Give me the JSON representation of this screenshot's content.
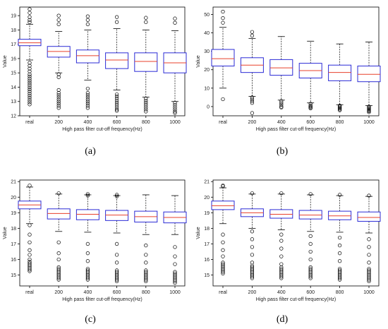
{
  "colors": {
    "box": "#2b2bd6",
    "median": "#e8412b",
    "whisker": "#000000",
    "flier": "#000000",
    "axis": "#000000"
  },
  "chart_data": [
    {
      "type": "box",
      "panel_label": "(a)",
      "categories": [
        "real",
        "200",
        "400",
        "600",
        "800",
        "1000"
      ],
      "xlabel": "High pass filter cut-off frequency(Hz)",
      "ylabel": "Value",
      "ylim": [
        12,
        19.6
      ],
      "yticks": [
        12,
        13,
        14,
        15,
        16,
        17,
        18,
        19
      ],
      "boxes": [
        {
          "whislo": 15.9,
          "q1": 16.9,
          "med": 17.1,
          "q3": 17.35,
          "whishi": 18.4,
          "fliers": [
            19.45,
            19.2,
            18.9,
            18.7,
            18.55,
            15.7,
            15.5,
            15.3,
            15.1,
            14.9,
            14.75,
            14.6,
            14.45,
            14.3,
            14.15,
            14.0,
            13.85,
            13.7,
            13.55,
            13.4,
            13.25,
            13.1,
            12.95,
            12.8
          ]
        },
        {
          "whislo": 15.0,
          "q1": 16.1,
          "med": 16.5,
          "q3": 16.85,
          "whishi": 17.9,
          "fliers": [
            19.0,
            18.7,
            18.4,
            14.9,
            14.7,
            13.8,
            13.6,
            13.45,
            13.3,
            13.15,
            13.0,
            12.85,
            12.7,
            12.55
          ]
        },
        {
          "whislo": 14.5,
          "q1": 15.7,
          "med": 16.2,
          "q3": 16.6,
          "whishi": 18.0,
          "fliers": [
            18.95,
            18.7,
            18.4,
            13.9,
            13.6,
            13.45,
            13.3,
            13.15,
            13.0,
            12.85,
            12.7,
            12.55
          ]
        },
        {
          "whislo": 13.8,
          "q1": 15.3,
          "med": 15.9,
          "q3": 16.4,
          "whishi": 18.1,
          "fliers": [
            18.9,
            18.55,
            13.5,
            13.35,
            13.2,
            13.05,
            12.9,
            12.75,
            12.6,
            12.45,
            12.35
          ]
        },
        {
          "whislo": 13.3,
          "q1": 15.1,
          "med": 15.8,
          "q3": 16.4,
          "whishi": 18.0,
          "fliers": [
            18.85,
            18.55,
            13.2,
            13.05,
            12.9,
            12.75,
            12.6,
            12.45,
            12.3
          ]
        },
        {
          "whislo": 13.0,
          "q1": 15.0,
          "med": 15.7,
          "q3": 16.4,
          "whishi": 17.95,
          "fliers": [
            18.8,
            18.5,
            12.9,
            12.75,
            12.6,
            12.45,
            12.3,
            12.2
          ]
        }
      ]
    },
    {
      "type": "box",
      "panel_label": "(b)",
      "categories": [
        "real",
        "200",
        "400",
        "600",
        "800",
        "1000"
      ],
      "xlabel": "High pass filter cut-off frequency(Hz)",
      "ylabel": "Value",
      "ylim": [
        -5,
        54
      ],
      "yticks": [
        0,
        10,
        20,
        30,
        40,
        50
      ],
      "boxes": [
        {
          "whislo": 10,
          "q1": 22,
          "med": 26,
          "q3": 31,
          "whishi": 43,
          "fliers": [
            51.5,
            48,
            45.5,
            4
          ]
        },
        {
          "whislo": 5.5,
          "q1": 18.5,
          "med": 22.5,
          "q3": 26.5,
          "whishi": 37,
          "fliers": [
            40.5,
            38.5,
            5,
            4,
            3,
            2,
            -3.5
          ]
        },
        {
          "whislo": 3.5,
          "q1": 17,
          "med": 21,
          "q3": 25.5,
          "whishi": 38,
          "fliers": [
            3,
            2,
            1,
            0,
            -0.5
          ]
        },
        {
          "whislo": 2,
          "q1": 15.5,
          "med": 19.5,
          "q3": 23.5,
          "whishi": 35.5,
          "fliers": [
            1.5,
            0.5,
            0,
            -0.5,
            -1
          ]
        },
        {
          "whislo": 1,
          "q1": 14,
          "med": 18.5,
          "q3": 22.5,
          "whishi": 34,
          "fliers": [
            0.5,
            0,
            -0.5,
            -1,
            -1.5,
            -2
          ]
        },
        {
          "whislo": 0.5,
          "q1": 13.5,
          "med": 17.5,
          "q3": 22,
          "whishi": 35,
          "fliers": [
            0,
            -0.5,
            -1,
            -1.5,
            -2,
            -2.5,
            -3
          ]
        }
      ]
    },
    {
      "type": "box",
      "panel_label": "(c)",
      "categories": [
        "real",
        "200",
        "400",
        "600",
        "800",
        "1000"
      ],
      "xlabel": "High pass filter cut-off frequency(Hz)",
      "ylabel": "Value",
      "ylim": [
        14.3,
        21.1
      ],
      "yticks": [
        15,
        16,
        17,
        18,
        19,
        20,
        21
      ],
      "boxes": [
        {
          "whislo": 18.3,
          "q1": 19.25,
          "med": 19.5,
          "q3": 19.75,
          "whishi": 20.65,
          "fliers": [
            20.75,
            18.2,
            17.6,
            17.1,
            16.6,
            16.3,
            16.0,
            15.85,
            15.75,
            15.65,
            15.55,
            15.45,
            15.35,
            15.25
          ]
        },
        {
          "whislo": 17.8,
          "q1": 18.6,
          "med": 18.95,
          "q3": 19.25,
          "whishi": 20.2,
          "fliers": [
            20.25,
            17.1,
            16.4,
            16.0,
            15.5,
            15.4,
            15.3,
            15.2,
            15.1,
            15.0,
            14.9,
            14.8,
            14.7
          ]
        },
        {
          "whislo": 17.75,
          "q1": 18.55,
          "med": 18.9,
          "q3": 19.2,
          "whishi": 20.15,
          "fliers": [
            20.2,
            20.1,
            17.0,
            16.4,
            15.9,
            15.4,
            15.3,
            15.2,
            15.1,
            15.0,
            14.9,
            14.8,
            14.7
          ]
        },
        {
          "whislo": 17.7,
          "q1": 18.5,
          "med": 18.85,
          "q3": 19.15,
          "whishi": 20.1,
          "fliers": [
            20.15,
            20.05,
            17.0,
            16.3,
            15.8,
            15.3,
            15.2,
            15.1,
            15.0,
            14.9,
            14.8,
            14.7,
            14.6
          ]
        },
        {
          "whislo": 17.6,
          "q1": 18.4,
          "med": 18.75,
          "q3": 19.1,
          "whishi": 20.15,
          "fliers": [
            16.9,
            16.3,
            15.8,
            15.3,
            15.2,
            15.1,
            15.0,
            14.9,
            14.8,
            14.7,
            14.6
          ]
        },
        {
          "whislo": 17.6,
          "q1": 18.35,
          "med": 18.7,
          "q3": 19.05,
          "whishi": 20.1,
          "fliers": [
            16.8,
            16.2,
            15.7,
            15.2,
            15.1,
            15.0,
            14.9,
            14.8,
            14.7,
            14.6,
            14.5
          ]
        }
      ]
    },
    {
      "type": "box",
      "panel_label": "(d)",
      "categories": [
        "real",
        "200",
        "400",
        "600",
        "800",
        "1000"
      ],
      "xlabel": "High pass filter cut-off frequency(Hz)",
      "ylabel": "Value",
      "ylim": [
        14.3,
        21.1
      ],
      "yticks": [
        15,
        16,
        17,
        18,
        19,
        20,
        21
      ],
      "boxes": [
        {
          "whislo": 18.3,
          "q1": 19.2,
          "med": 19.45,
          "q3": 19.75,
          "whishi": 20.6,
          "fliers": [
            20.75,
            20.7,
            17.6,
            17.1,
            16.6,
            16.2,
            15.8,
            15.7,
            15.6,
            15.5,
            15.4,
            15.3,
            15.2,
            15.1
          ]
        },
        {
          "whislo": 18.0,
          "q1": 18.75,
          "med": 19.0,
          "q3": 19.25,
          "whishi": 20.2,
          "fliers": [
            20.25,
            17.8,
            17.3,
            16.8,
            16.3,
            15.8,
            15.6,
            15.5,
            15.4,
            15.3,
            15.2,
            15.1,
            15.0,
            14.9,
            14.8
          ]
        },
        {
          "whislo": 17.9,
          "q1": 18.65,
          "med": 18.9,
          "q3": 19.2,
          "whishi": 20.2,
          "fliers": [
            20.25,
            17.6,
            17.2,
            16.7,
            16.2,
            15.7,
            15.5,
            15.4,
            15.3,
            15.2,
            15.1,
            15.0,
            14.9,
            14.8
          ]
        },
        {
          "whislo": 17.8,
          "q1": 18.6,
          "med": 18.85,
          "q3": 19.15,
          "whishi": 20.15,
          "fliers": [
            20.2,
            17.5,
            17.0,
            16.5,
            16.0,
            15.5,
            15.4,
            15.3,
            15.2,
            15.1,
            15.0,
            14.9,
            14.8
          ]
        },
        {
          "whislo": 17.75,
          "q1": 18.55,
          "med": 18.8,
          "q3": 19.1,
          "whishi": 20.1,
          "fliers": [
            20.15,
            17.4,
            16.9,
            16.4,
            15.9,
            15.4,
            15.3,
            15.2,
            15.1,
            15.0,
            14.9,
            14.8,
            14.7
          ]
        },
        {
          "whislo": 17.7,
          "q1": 18.45,
          "med": 18.7,
          "q3": 19.05,
          "whishi": 20.05,
          "fliers": [
            20.1,
            17.3,
            16.8,
            16.3,
            15.8,
            15.4,
            15.3,
            15.2,
            15.1,
            15.0,
            14.9,
            14.8,
            14.7,
            14.6
          ]
        }
      ]
    }
  ]
}
